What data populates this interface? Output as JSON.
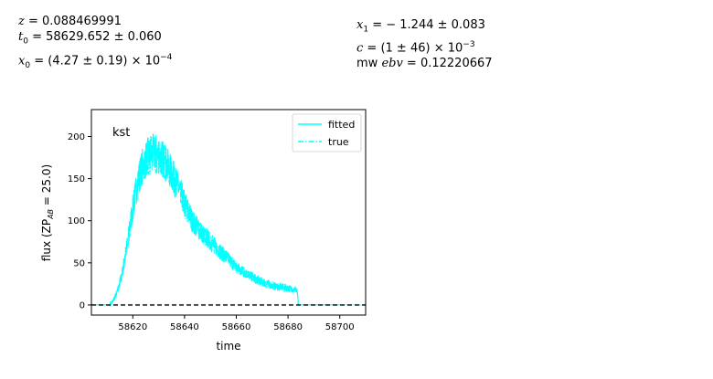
{
  "params": {
    "z": "0.088469991",
    "t0": "58629.652 ± 0.060",
    "x0_mant": "(4.27 ± 0.19) × 10",
    "x0_exp": "−4",
    "x1": "− 1.244 ± 0.083",
    "c_mant": "(1 ± 46) × 10",
    "c_exp": "−3",
    "mwebv": "0.12220667"
  },
  "chart_data": {
    "type": "line",
    "band": "kst",
    "xlabel": "time",
    "ylabel": "flux (ZP",
    "ylabel_sub": "AB",
    "ylabel_tail": " = 25.0)",
    "xlim": [
      58604,
      58710
    ],
    "ylim": [
      -12,
      232
    ],
    "xticks": [
      58620,
      58640,
      58660,
      58680,
      58700
    ],
    "yticks": [
      0,
      50,
      100,
      150,
      200
    ],
    "xtick_labels": [
      "58620",
      "58640",
      "58660",
      "58680",
      "58700"
    ],
    "ytick_labels": [
      "0",
      "50",
      "100",
      "150",
      "200"
    ],
    "legend_position": "top-right",
    "zero_line": {
      "y": 0,
      "style": "dashed",
      "color": "#000000"
    },
    "series": [
      {
        "name": "fitted",
        "style": "solid",
        "color": "#00ffff",
        "x": [
          58604,
          58611,
          58612,
          58614,
          58616,
          58618,
          58620,
          58622,
          58624,
          58626,
          58628,
          58630,
          58632,
          58634,
          58636,
          58638,
          58640,
          58643,
          58646,
          58650,
          58655,
          58660,
          58665,
          58670,
          58675,
          58680,
          58683.5,
          58684,
          58700
        ],
        "y": [
          0,
          0,
          3,
          15,
          40,
          75,
          115,
          148,
          168,
          177,
          180,
          178,
          172,
          162,
          150,
          137,
          120,
          100,
          88,
          75,
          60,
          45,
          35,
          27,
          22,
          20,
          18,
          0,
          0
        ]
      },
      {
        "name": "true",
        "style": "dashdot",
        "color": "#00ffff",
        "x": [
          58604,
          58611,
          58612,
          58614,
          58616,
          58618,
          58620,
          58622,
          58624,
          58626,
          58628,
          58630,
          58632,
          58634,
          58636,
          58638,
          58640,
          58643,
          58646,
          58650,
          58655,
          58660,
          58665,
          58670,
          58675,
          58680,
          58683.5,
          58684,
          58710
        ],
        "y": [
          0,
          0,
          3,
          15,
          40,
          75,
          115,
          148,
          168,
          177,
          180,
          178,
          172,
          162,
          150,
          137,
          120,
          100,
          88,
          75,
          60,
          45,
          35,
          27,
          22,
          20,
          18,
          0,
          0
        ]
      }
    ],
    "noise_amplitude_fraction": 0.12,
    "noise_peak": 221
  }
}
